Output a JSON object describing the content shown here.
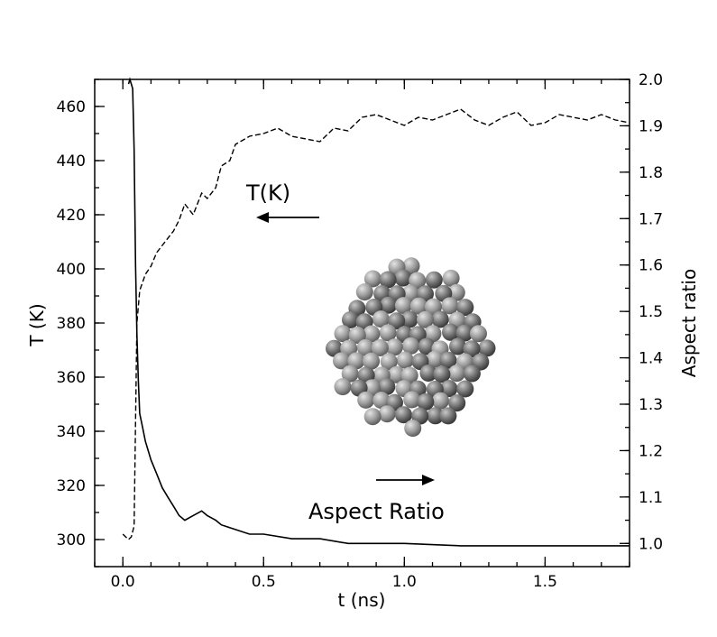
{
  "chart_data": {
    "type": "line",
    "title": "",
    "xlabel": "t (ns)",
    "ylabel_left": "T (K)",
    "ylabel_right": "Aspect ratio",
    "xlim": [
      -0.1,
      1.8
    ],
    "ylim_left": [
      290,
      470
    ],
    "ylim_right": [
      0.95,
      2.0
    ],
    "x_ticks": [
      "0.0",
      "0.5",
      "1.0",
      "1.5"
    ],
    "y_left_ticks": [
      "300",
      "320",
      "340",
      "360",
      "380",
      "400",
      "420",
      "440",
      "460"
    ],
    "y_right_ticks": [
      "1.0",
      "1.1",
      "1.2",
      "1.3",
      "1.4",
      "1.5",
      "1.6",
      "1.7",
      "1.8",
      "1.9",
      "2.0"
    ],
    "grid": false,
    "series": [
      {
        "axis": "left",
        "style": "dashed",
        "color": "#000000",
        "x": [
          0.0,
          0.01,
          0.02,
          0.03,
          0.04,
          0.05,
          0.06,
          0.08,
          0.1,
          0.12,
          0.15,
          0.18,
          0.2,
          0.22,
          0.25,
          0.28,
          0.3,
          0.33,
          0.35,
          0.38,
          0.4,
          0.45,
          0.5,
          0.55,
          0.6,
          0.65,
          0.7,
          0.75,
          0.8,
          0.85,
          0.9,
          0.95,
          1.0,
          1.05,
          1.1,
          1.15,
          1.2,
          1.25,
          1.3,
          1.35,
          1.4,
          1.45,
          1.5,
          1.55,
          1.6,
          1.65,
          1.7,
          1.75,
          1.8
        ],
        "values": [
          302,
          301,
          300,
          301,
          305,
          380,
          392,
          398,
          401,
          406,
          410,
          414,
          418,
          424,
          420,
          428,
          426,
          430,
          438,
          440,
          446,
          449,
          450,
          452,
          449,
          448,
          447,
          452,
          451,
          456,
          457,
          455,
          453,
          456,
          455,
          457,
          459,
          455,
          453,
          456,
          458,
          453,
          454,
          457,
          456,
          455,
          457,
          455,
          454
        ]
      },
      {
        "axis": "right",
        "style": "solid",
        "color": "#000000",
        "x": [
          0.02,
          0.025,
          0.03,
          0.035,
          0.04,
          0.045,
          0.05,
          0.055,
          0.06,
          0.07,
          0.08,
          0.09,
          0.1,
          0.12,
          0.14,
          0.16,
          0.18,
          0.2,
          0.22,
          0.25,
          0.28,
          0.3,
          0.33,
          0.35,
          0.4,
          0.45,
          0.5,
          0.6,
          0.7,
          0.8,
          0.9,
          1.0,
          1.2,
          1.4,
          1.6,
          1.8
        ],
        "values": [
          1.99,
          2.0,
          1.99,
          1.98,
          1.85,
          1.6,
          1.45,
          1.35,
          1.28,
          1.25,
          1.22,
          1.2,
          1.18,
          1.15,
          1.12,
          1.1,
          1.08,
          1.06,
          1.05,
          1.06,
          1.07,
          1.06,
          1.05,
          1.04,
          1.03,
          1.02,
          1.02,
          1.01,
          1.01,
          1.0,
          1.0,
          1.0,
          0.995,
          0.995,
          0.995,
          0.995
        ]
      }
    ],
    "annotations": [
      {
        "text": "T(K)",
        "arrow": "left"
      },
      {
        "text": "Aspect Ratio",
        "arrow": "right"
      }
    ],
    "inset_image": "nanocluster-spheres"
  }
}
